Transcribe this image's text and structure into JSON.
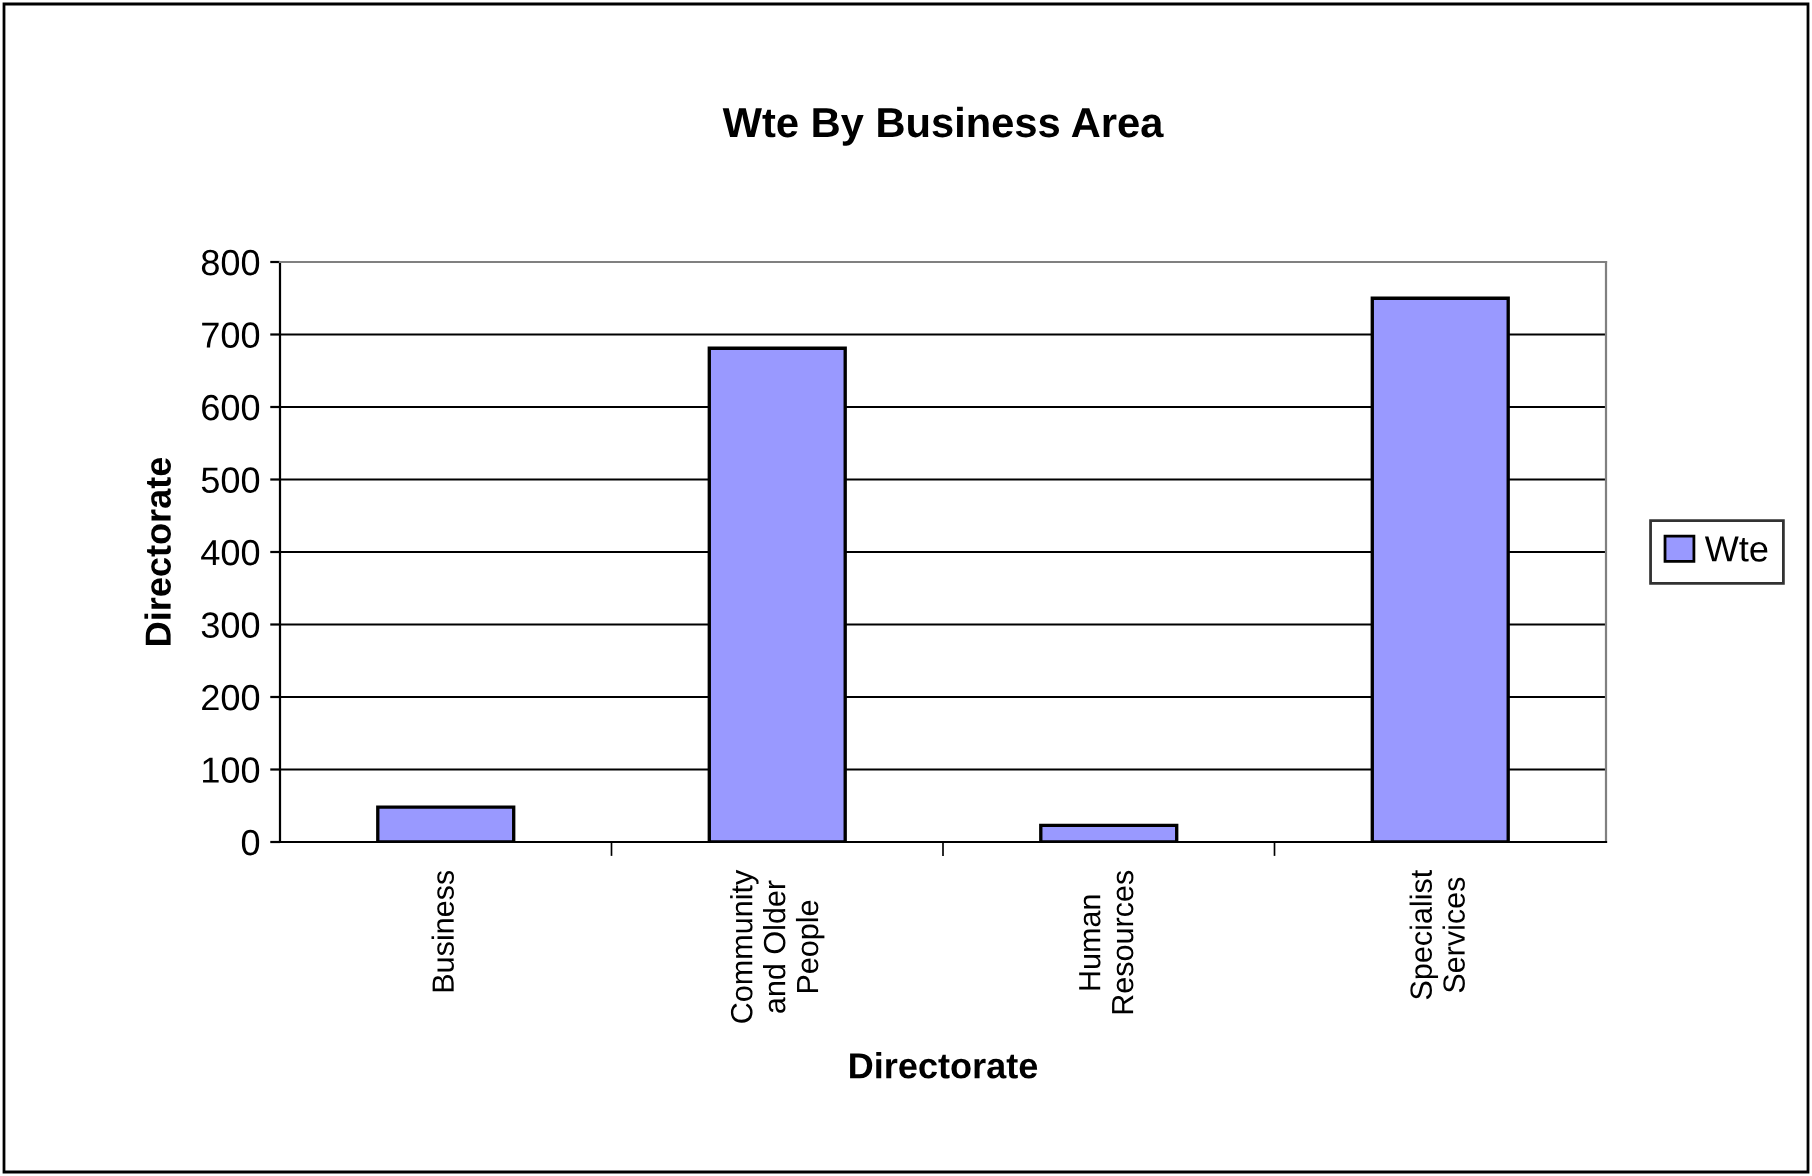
{
  "chart_data": {
    "type": "bar",
    "title": "Wte By Business Area",
    "xlabel": "Directorate",
    "ylabel": "Directorate",
    "categories": [
      "Business",
      "Community\nand Older\nPeople",
      "Human\nResources",
      "Specialist\nServices"
    ],
    "series": [
      {
        "name": "Wte",
        "color": "#9999ff",
        "values": [
          48,
          681,
          23,
          750
        ]
      }
    ],
    "ylim": [
      0,
      800
    ],
    "yticks": [
      0,
      100,
      200,
      300,
      400,
      500,
      600,
      700,
      800
    ],
    "grid": "y",
    "legend": "right"
  }
}
